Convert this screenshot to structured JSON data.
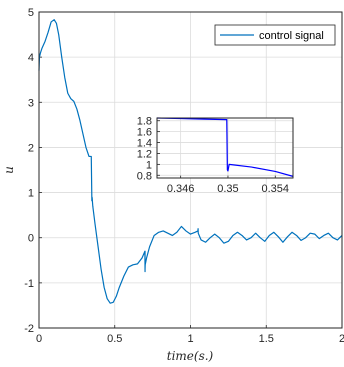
{
  "chart_data": [
    {
      "type": "line",
      "xlabel": "time(s.)",
      "ylabel": "u",
      "xlim": [
        0,
        2
      ],
      "ylim": [
        -2,
        5
      ],
      "x_ticks": [
        "0",
        "0.5",
        "1",
        "1.5",
        "2"
      ],
      "y_ticks": [
        "-2",
        "-1",
        "0",
        "1",
        "2",
        "3",
        "4",
        "5"
      ],
      "grid": true,
      "legend_position": "top-right",
      "series": [
        {
          "name": "control signal",
          "color": "#0072BD",
          "x": [
            0,
            0.003,
            0.01,
            0.02,
            0.04,
            0.06,
            0.08,
            0.1,
            0.115,
            0.13,
            0.15,
            0.17,
            0.19,
            0.21,
            0.23,
            0.25,
            0.27,
            0.29,
            0.31,
            0.33,
            0.345,
            0.349,
            0.35,
            0.351,
            0.355,
            0.37,
            0.39,
            0.41,
            0.43,
            0.45,
            0.47,
            0.49,
            0.51,
            0.53,
            0.56,
            0.59,
            0.62,
            0.65,
            0.68,
            0.699,
            0.7,
            0.7,
            0.7,
            0.701,
            0.71,
            0.73,
            0.76,
            0.79,
            0.82,
            0.85,
            0.88,
            0.91,
            0.94,
            0.97,
            1.0,
            1.03,
            1.049,
            1.05,
            1.051,
            1.07,
            1.1,
            1.13,
            1.16,
            1.19,
            1.22,
            1.25,
            1.28,
            1.31,
            1.34,
            1.37,
            1.4,
            1.43,
            1.46,
            1.49,
            1.52,
            1.55,
            1.58,
            1.61,
            1.64,
            1.67,
            1.7,
            1.73,
            1.76,
            1.79,
            1.82,
            1.85,
            1.88,
            1.91,
            1.94,
            1.97,
            2.0
          ],
          "y": [
            3.7,
            4.0,
            4.1,
            4.2,
            4.35,
            4.55,
            4.78,
            4.83,
            4.75,
            4.5,
            4.0,
            3.55,
            3.2,
            3.08,
            3.02,
            2.85,
            2.6,
            2.3,
            2.0,
            1.8,
            1.8,
            0.82,
            0.9,
            0.88,
            0.7,
            0.3,
            -0.2,
            -0.7,
            -1.1,
            -1.35,
            -1.45,
            -1.43,
            -1.3,
            -1.1,
            -0.85,
            -0.65,
            -0.6,
            -0.58,
            -0.45,
            -0.3,
            -0.75,
            -0.3,
            -0.7,
            -0.6,
            -0.45,
            -0.2,
            0.05,
            0.12,
            0.15,
            0.1,
            0.05,
            0.12,
            0.25,
            0.15,
            0.08,
            0.12,
            0.15,
            0.2,
            0.1,
            -0.05,
            -0.1,
            0.0,
            0.08,
            0.0,
            -0.12,
            -0.08,
            0.05,
            0.12,
            0.05,
            -0.05,
            0.0,
            0.1,
            0.0,
            -0.08,
            0.05,
            0.12,
            0.02,
            -0.1,
            0.02,
            0.12,
            0.05,
            -0.06,
            0.0,
            0.1,
            0.08,
            -0.02,
            0.05,
            0.1,
            0.0,
            -0.05,
            0.05
          ]
        }
      ]
    },
    {
      "type": "line",
      "xlim": [
        0.344,
        0.3555
      ],
      "ylim": [
        0.75,
        1.85
      ],
      "x_ticks": [
        "0.346",
        "0.35",
        "0.354"
      ],
      "y_ticks": [
        "0.8",
        "1",
        "1.2",
        "1.4",
        "1.6",
        "1.8"
      ],
      "grid": true,
      "series": [
        {
          "color": "#0000FF",
          "x": [
            0.344,
            0.346,
            0.348,
            0.3499,
            0.34995,
            0.35,
            0.3501,
            0.352,
            0.354,
            0.3555
          ],
          "y": [
            1.85,
            1.84,
            1.83,
            1.82,
            0.9,
            0.88,
            1.0,
            0.95,
            0.87,
            0.78
          ]
        }
      ]
    }
  ]
}
